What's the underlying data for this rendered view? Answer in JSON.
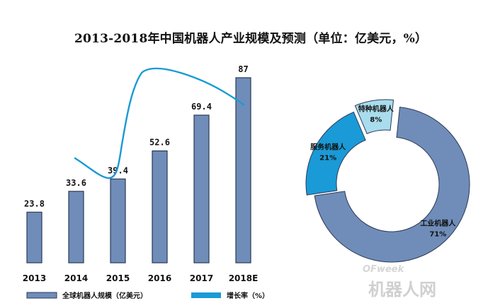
{
  "title": "2013-2018年中国机器人产业规模及预测（单位：亿美元，%）",
  "colors": {
    "bar": "#6f8db8",
    "growth_line": "#1a9ad6",
    "industrial": "#6f8db8",
    "service": "#1a9ad6",
    "special": "#a9dcec"
  },
  "chart_data": [
    {
      "type": "bar",
      "categories": [
        "2013",
        "2014",
        "2015",
        "2016",
        "2017",
        "2018E"
      ],
      "series": [
        {
          "name": "全球机器人规模（亿美元）",
          "values": [
            23.8,
            33.6,
            39.4,
            52.6,
            69.4,
            87
          ]
        },
        {
          "name": "增长率（%）",
          "type": "line"
        }
      ],
      "value_labels": [
        "23.8",
        "33.6",
        "39.4",
        "52.6",
        "69.4",
        "87"
      ],
      "legend_position": "bottom",
      "grid": false
    },
    {
      "type": "pie",
      "donut": true,
      "labels": [
        "工业机器人",
        "服务机器人",
        "特种机器人"
      ],
      "values": [
        71,
        21,
        8
      ],
      "value_labels": [
        "71%",
        "21%",
        "8%"
      ]
    }
  ],
  "legend": {
    "bar_label": "全球机器人规模（亿美元）",
    "line_label": "增长率（%）"
  },
  "watermark": {
    "text": "机器人网",
    "brand": "OFweek"
  }
}
